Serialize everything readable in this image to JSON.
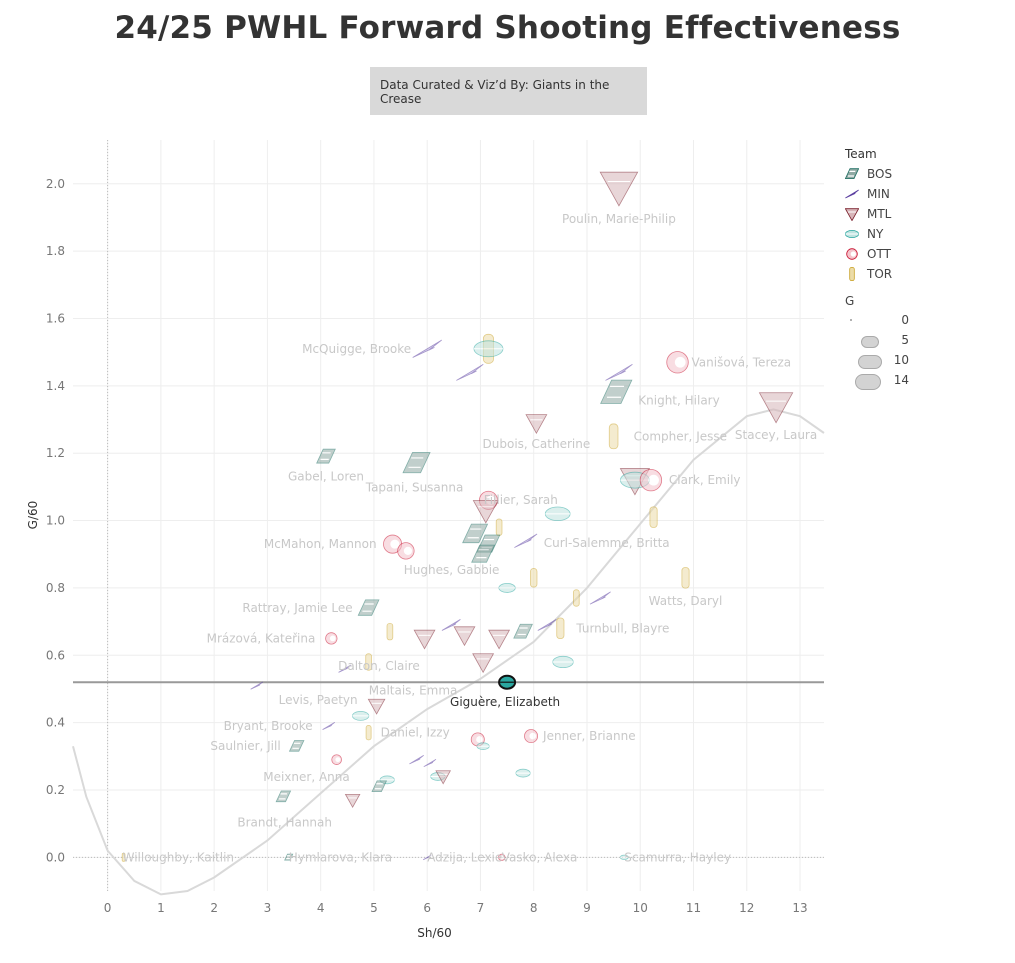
{
  "page": {
    "title": "24/25 PWHL Forward Shooting Effectiveness",
    "credit": "Data Curated & Viz’d By: Giants in the Crease"
  },
  "legend": {
    "team_title": "Team",
    "teams": [
      {
        "label": "BOS",
        "color": "#1f6f63"
      },
      {
        "label": "MIN",
        "color": "#5b3fa0"
      },
      {
        "label": "MTL",
        "color": "#7a1f2b"
      },
      {
        "label": "NY",
        "color": "#2aa7a0"
      },
      {
        "label": "OTT",
        "color": "#c8102e"
      },
      {
        "label": "TOR",
        "color": "#c9a227"
      }
    ],
    "size_title": "G",
    "sizes": [
      "0",
      "5",
      "10",
      "14"
    ]
  },
  "chart_data": {
    "type": "scatter",
    "title": "24/25 PWHL Forward Shooting Effectiveness",
    "xlabel": "Sh/60",
    "ylabel": "G/60",
    "xlim": [
      -0.65,
      13.45
    ],
    "ylim": [
      -0.1,
      2.13
    ],
    "xticks": [
      "0",
      "1",
      "2",
      "3",
      "4",
      "5",
      "6",
      "7",
      "8",
      "9",
      "10",
      "11",
      "12",
      "13"
    ],
    "yticks": [
      "0.0",
      "0.2",
      "0.4",
      "0.6",
      "0.8",
      "1.0",
      "1.2",
      "1.4",
      "1.6",
      "1.8",
      "2.0"
    ],
    "reference_line_y": 0.52,
    "grid": true,
    "highlight": {
      "label": "Giguère, Elizabeth",
      "team": "NY",
      "x": 7.5,
      "y": 0.52
    },
    "points": [
      {
        "team": "MTL",
        "x": 9.6,
        "y": 1.99,
        "g": 14,
        "label": "Poulin, Marie-Philip"
      },
      {
        "team": "MIN",
        "x": 6.0,
        "y": 1.51,
        "g": 10,
        "label": "McQuigge, Brooke"
      },
      {
        "team": "TOR",
        "x": 7.15,
        "y": 1.51,
        "g": 10
      },
      {
        "team": "NY",
        "x": 7.15,
        "y": 1.51,
        "g": 10
      },
      {
        "team": "MIN",
        "x": 6.8,
        "y": 1.44,
        "g": 9
      },
      {
        "team": "OTT",
        "x": 10.7,
        "y": 1.47,
        "g": 9,
        "label": "Vanišová, Tereza"
      },
      {
        "team": "MIN",
        "x": 9.6,
        "y": 1.44,
        "g": 9
      },
      {
        "team": "BOS",
        "x": 9.55,
        "y": 1.38,
        "g": 11,
        "label": "Knight, Hilary"
      },
      {
        "team": "MTL",
        "x": 12.55,
        "y": 1.34,
        "g": 12,
        "label": "Stacey, Laura"
      },
      {
        "team": "MTL",
        "x": 8.05,
        "y": 1.29,
        "g": 6,
        "label": "Dubois, Catherine"
      },
      {
        "team": "TOR",
        "x": 9.5,
        "y": 1.25,
        "g": 8,
        "label": "Compher, Jesse"
      },
      {
        "team": "BOS",
        "x": 4.1,
        "y": 1.19,
        "g": 5,
        "label": "Gabel, Loren"
      },
      {
        "team": "BOS",
        "x": 5.8,
        "y": 1.17,
        "g": 9,
        "label": "Tapani, Susanna"
      },
      {
        "team": "MTL",
        "x": 9.9,
        "y": 1.12,
        "g": 10
      },
      {
        "team": "NY",
        "x": 9.9,
        "y": 1.12,
        "g": 10
      },
      {
        "team": "OTT",
        "x": 10.2,
        "y": 1.12,
        "g": 9,
        "label": "Clark, Emily"
      },
      {
        "team": "OTT",
        "x": 7.15,
        "y": 1.06,
        "g": 7
      },
      {
        "team": "MTL",
        "x": 7.1,
        "y": 1.03,
        "g": 8
      },
      {
        "team": "NY",
        "x": 8.45,
        "y": 1.02,
        "g": 8,
        "label": "Fillier, Sarah"
      },
      {
        "team": "TOR",
        "x": 10.25,
        "y": 1.01,
        "g": 6
      },
      {
        "team": "TOR",
        "x": 7.35,
        "y": 0.98,
        "g": 4
      },
      {
        "team": "BOS",
        "x": 6.9,
        "y": 0.96,
        "g": 8
      },
      {
        "team": "BOS",
        "x": 7.15,
        "y": 0.93,
        "g": 7
      },
      {
        "team": "MIN",
        "x": 7.85,
        "y": 0.94,
        "g": 7,
        "label": "Curl-Salemme, Britta"
      },
      {
        "team": "OTT",
        "x": 5.35,
        "y": 0.93,
        "g": 7,
        "label": "McMahon, Mannon"
      },
      {
        "team": "OTT",
        "x": 5.6,
        "y": 0.91,
        "g": 6
      },
      {
        "team": "BOS",
        "x": 7.05,
        "y": 0.9,
        "g": 7
      },
      {
        "team": "NY",
        "x": 7.5,
        "y": 0.8,
        "g": 4
      },
      {
        "team": "TOR",
        "x": 8.0,
        "y": 0.83,
        "g": 5,
        "label": "Hughes, Gabbie",
        "label_dx": -130,
        "label_dy": -8
      },
      {
        "team": "TOR",
        "x": 10.85,
        "y": 0.83,
        "g": 6,
        "label": "Watts, Daryl"
      },
      {
        "team": "TOR",
        "x": 8.8,
        "y": 0.77,
        "g": 4
      },
      {
        "team": "MIN",
        "x": 9.25,
        "y": 0.77,
        "g": 6
      },
      {
        "team": "BOS",
        "x": 4.9,
        "y": 0.74,
        "g": 6,
        "label": "Rattray, Jamie Lee"
      },
      {
        "team": "MIN",
        "x": 6.45,
        "y": 0.69,
        "g": 5
      },
      {
        "team": "MIN",
        "x": 8.25,
        "y": 0.69,
        "g": 5
      },
      {
        "team": "TOR",
        "x": 8.5,
        "y": 0.68,
        "g": 6,
        "label": "Turnbull, Blayre"
      },
      {
        "team": "BOS",
        "x": 7.8,
        "y": 0.67,
        "g": 5
      },
      {
        "team": "TOR",
        "x": 5.3,
        "y": 0.67,
        "g": 4
      },
      {
        "team": "MTL",
        "x": 6.7,
        "y": 0.66,
        "g": 6
      },
      {
        "team": "OTT",
        "x": 4.2,
        "y": 0.65,
        "g": 3,
        "label": "Mrázová, Kateřina"
      },
      {
        "team": "MTL",
        "x": 5.95,
        "y": 0.65,
        "g": 6
      },
      {
        "team": "MTL",
        "x": 7.35,
        "y": 0.65,
        "g": 6
      },
      {
        "team": "MTL",
        "x": 7.05,
        "y": 0.58,
        "g": 6,
        "label": "Dalton, Claire",
        "label_dx": -145,
        "label_dy": 4
      },
      {
        "team": "TOR",
        "x": 4.9,
        "y": 0.58,
        "g": 4
      },
      {
        "team": "NY",
        "x": 8.55,
        "y": 0.58,
        "g": 6
      },
      {
        "team": "MIN",
        "x": 4.45,
        "y": 0.56,
        "g": 2
      },
      {
        "team": "MIN",
        "x": 2.8,
        "y": 0.51,
        "g": 2,
        "label": "Maltais, Emma",
        "label_dx": 112,
        "label_dy": 5
      },
      {
        "team": "MTL",
        "x": 5.05,
        "y": 0.45,
        "g": 4,
        "label": "Levis, Paetyn",
        "label_dx": -98,
        "label_dy": -6
      },
      {
        "team": "NY",
        "x": 4.75,
        "y": 0.42,
        "g": 4
      },
      {
        "team": "MIN",
        "x": 4.15,
        "y": 0.39,
        "g": 2,
        "label": "Bryant, Brooke"
      },
      {
        "team": "TOR",
        "x": 4.9,
        "y": 0.37,
        "g": 3,
        "label": "Daniel, Izzy"
      },
      {
        "team": "OTT",
        "x": 6.95,
        "y": 0.35,
        "g": 4
      },
      {
        "team": "NY",
        "x": 7.05,
        "y": 0.33,
        "g": 2
      },
      {
        "team": "OTT",
        "x": 7.95,
        "y": 0.36,
        "g": 4,
        "label": "Jenner, Brianne"
      },
      {
        "team": "BOS",
        "x": 3.55,
        "y": 0.33,
        "g": 3,
        "label": "Saulnier, Jill"
      },
      {
        "team": "OTT",
        "x": 4.3,
        "y": 0.29,
        "g": 2
      },
      {
        "team": "MIN",
        "x": 5.8,
        "y": 0.29,
        "g": 3
      },
      {
        "team": "MIN",
        "x": 6.05,
        "y": 0.28,
        "g": 2
      },
      {
        "team": "NY",
        "x": 7.8,
        "y": 0.25,
        "g": 3
      },
      {
        "team": "NY",
        "x": 6.2,
        "y": 0.24,
        "g": 3
      },
      {
        "team": "MTL",
        "x": 6.3,
        "y": 0.24,
        "g": 3
      },
      {
        "team": "NY",
        "x": 5.25,
        "y": 0.23,
        "g": 3,
        "label": "Meixner, Anna",
        "label_dx": -124,
        "label_dy": -3
      },
      {
        "team": "BOS",
        "x": 5.1,
        "y": 0.21,
        "g": 3
      },
      {
        "team": "BOS",
        "x": 3.3,
        "y": 0.18,
        "g": 3,
        "label": "Brandt, Hannah",
        "label_dx": -46,
        "label_dy": 26
      },
      {
        "team": "MTL",
        "x": 4.6,
        "y": 0.17,
        "g": 3
      },
      {
        "team": "TOR",
        "x": 0.3,
        "y": 0.0,
        "g": 0,
        "label": "Willoughby, Kaitlin"
      },
      {
        "team": "BOS",
        "x": 3.4,
        "y": 0.0,
        "g": 0,
        "label": "Hymlarova, Klara"
      },
      {
        "team": "MIN",
        "x": 6.0,
        "y": 0.0,
        "g": 0,
        "label": "Adzija, Lexie"
      },
      {
        "team": "OTT",
        "x": 7.4,
        "y": 0.0,
        "g": 0,
        "label": "Vasko, Alexa"
      },
      {
        "team": "NY",
        "x": 9.7,
        "y": 0.0,
        "g": 0,
        "label": "Scamurra, Hayley"
      }
    ],
    "trend_curve": [
      [
        -0.65,
        0.33
      ],
      [
        -0.4,
        0.18
      ],
      [
        0.0,
        0.02
      ],
      [
        0.5,
        -0.07
      ],
      [
        1.0,
        -0.11
      ],
      [
        1.5,
        -0.1
      ],
      [
        2.0,
        -0.06
      ],
      [
        3.0,
        0.05
      ],
      [
        4.0,
        0.19
      ],
      [
        5.0,
        0.33
      ],
      [
        6.0,
        0.44
      ],
      [
        7.0,
        0.53
      ],
      [
        8.0,
        0.64
      ],
      [
        9.0,
        0.8
      ],
      [
        10.0,
        0.99
      ],
      [
        11.0,
        1.18
      ],
      [
        12.0,
        1.31
      ],
      [
        12.5,
        1.33
      ],
      [
        13.0,
        1.31
      ],
      [
        13.45,
        1.26
      ]
    ]
  }
}
